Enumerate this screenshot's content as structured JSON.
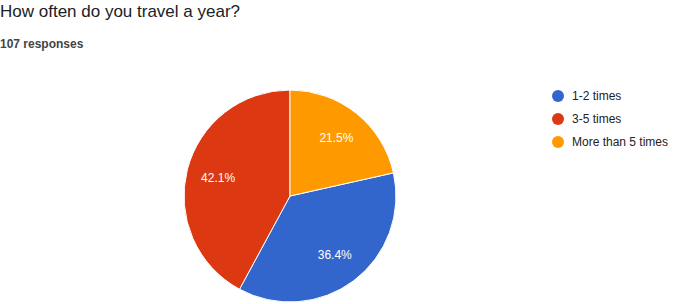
{
  "chart_data": {
    "type": "pie",
    "title": "How often do you travel a year?",
    "subtitle": "107 responses",
    "categories": [
      "1-2 times",
      "3-5 times",
      "More than 5 times"
    ],
    "values": [
      36.4,
      42.1,
      21.5
    ],
    "value_labels": [
      "36.4%",
      "42.1%",
      "21.5%"
    ],
    "colors": [
      "#3366cc",
      "#dc3912",
      "#ff9900"
    ],
    "data_labels": true,
    "legend": "right"
  }
}
